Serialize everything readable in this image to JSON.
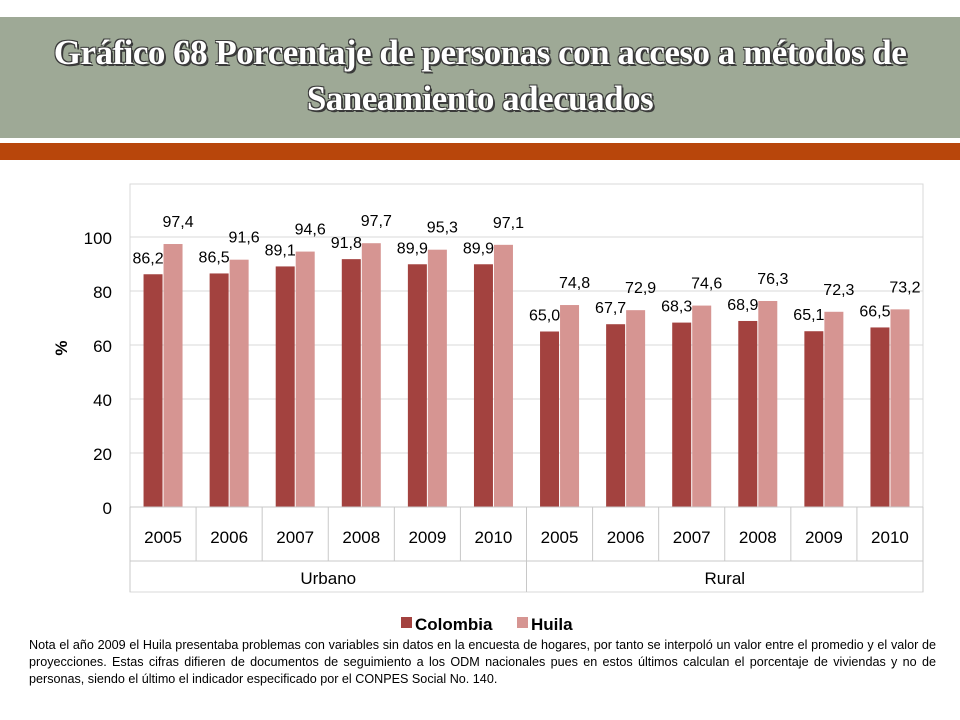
{
  "title": "Gráfico 68 Porcentaje de personas con acceso a métodos de Saneamiento adecuados",
  "note": "Nota el año 2009 el Huila presentaba problemas con variables sin datos en la encuesta de hogares,  por tanto se interpoló un valor entre el promedio y el valor de proyecciones. Estas cifras difieren de documentos de seguimiento a los ODM nacionales pues en estos últimos calculan el porcentaje de viviendas y no de personas, siendo el último el indicador especificado por el CONPES Social No. 140.",
  "colors": {
    "title_band": "#9ea996",
    "accent_bar": "#b8460b",
    "colombia": "#a3423f",
    "huila": "#d69592"
  },
  "chart_data": {
    "type": "bar",
    "ylabel": "%",
    "ylim": [
      0,
      100
    ],
    "yticks": [
      0,
      20,
      40,
      60,
      80,
      100
    ],
    "grid": true,
    "legend": "bottom",
    "groups": [
      "Urbano",
      "Rural"
    ],
    "categories": [
      "2005",
      "2006",
      "2007",
      "2008",
      "2009",
      "2010",
      "2005",
      "2006",
      "2007",
      "2008",
      "2009",
      "2010"
    ],
    "series": [
      {
        "name": "Colombia",
        "values": [
          86.2,
          86.5,
          89.1,
          91.8,
          89.9,
          89.9,
          65.0,
          67.7,
          68.3,
          68.9,
          65.1,
          66.5
        ],
        "labels": [
          "86,2",
          "86,5",
          "89,1",
          "91,8",
          "89,9",
          "89,9",
          "65,0",
          "67,7",
          "68,3",
          "68,9",
          "65,1",
          "66,5"
        ]
      },
      {
        "name": "Huila",
        "values": [
          97.4,
          91.6,
          94.6,
          97.7,
          95.3,
          97.1,
          74.8,
          72.9,
          74.6,
          76.3,
          72.3,
          73.2
        ],
        "labels": [
          "97,4",
          "91,6",
          "94,6",
          "97,7",
          "95,3",
          "97,1",
          "74,8",
          "72,9",
          "74,6",
          "76,3",
          "72,3",
          "73,2"
        ]
      }
    ]
  }
}
